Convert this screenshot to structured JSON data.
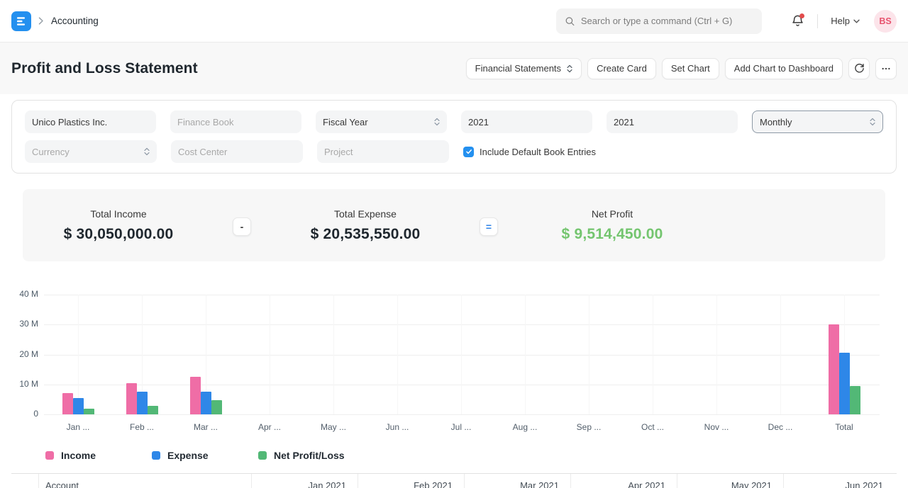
{
  "navbar": {
    "breadcrumb": "Accounting",
    "search_placeholder": "Search or type a command (Ctrl + G)",
    "help_label": "Help",
    "avatar_initials": "BS"
  },
  "page": {
    "title": "Profit and Loss Statement",
    "actions": {
      "financial_statements": "Financial Statements",
      "create_card": "Create Card",
      "set_chart": "Set Chart",
      "add_chart_to_dashboard": "Add Chart to Dashboard"
    }
  },
  "filters": {
    "company": "Unico Plastics Inc.",
    "finance_book_placeholder": "Finance Book",
    "period_based_on": "Fiscal Year",
    "start_year": "2021",
    "end_year": "2021",
    "periodicity": "Monthly",
    "currency_placeholder": "Currency",
    "cost_center_placeholder": "Cost Center",
    "project_placeholder": "Project",
    "include_default_book_entries_label": "Include Default Book Entries",
    "include_default_book_entries_checked": true
  },
  "summary": {
    "cards": [
      {
        "label": "Total Income",
        "value": "$ 30,050,000.00"
      },
      {
        "label": "Total Expense",
        "value": "$ 20,535,550.00"
      },
      {
        "label": "Net Profit",
        "value": "$ 9,514,450.00",
        "value_color": "#74c56f"
      }
    ],
    "operators": [
      "-",
      "="
    ]
  },
  "chart_data": {
    "type": "bar",
    "unit": "millions",
    "categories": [
      "Jan ...",
      "Feb ...",
      "Mar ...",
      "Apr ...",
      "May ...",
      "Jun ...",
      "Jul ...",
      "Aug ...",
      "Sep ...",
      "Oct ...",
      "Nov ...",
      "Dec ...",
      "Total"
    ],
    "series": [
      {
        "name": "Income",
        "color": "#ef6da6",
        "values": [
          7.2,
          10.4,
          12.45,
          0,
          0,
          0,
          0,
          0,
          0,
          0,
          0,
          0,
          30.05
        ]
      },
      {
        "name": "Expense",
        "color": "#2e87e8",
        "values": [
          5.4,
          7.5,
          7.64,
          0,
          0,
          0,
          0,
          0,
          0,
          0,
          0,
          0,
          20.54
        ]
      },
      {
        "name": "Net Profit/Loss",
        "color": "#52b876",
        "values": [
          1.8,
          2.9,
          4.81,
          0,
          0,
          0,
          0,
          0,
          0,
          0,
          0,
          0,
          9.51
        ]
      }
    ],
    "y_ticks": [
      "40 M",
      "30 M",
      "20 M",
      "10 M",
      "0"
    ],
    "ylim": [
      0,
      40
    ],
    "grid": true,
    "legend_position": "bottom"
  },
  "table": {
    "columns": [
      "",
      "Account",
      "Jan 2021",
      "Feb 2021",
      "Mar 2021",
      "Apr 2021",
      "May 2021",
      "Jun 2021"
    ]
  },
  "colors": {
    "accent": "#2490ef",
    "notification_dot": "#e24c4c",
    "net_profit_green": "#74c56f"
  }
}
